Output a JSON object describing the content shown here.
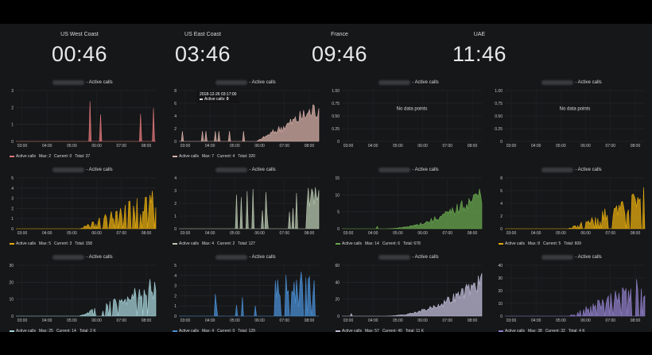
{
  "clocks": [
    {
      "city": "US West Coast",
      "time": "00:46"
    },
    {
      "city": "US East Coast",
      "time": "03:46"
    },
    {
      "city": "France",
      "time": "09:46"
    },
    {
      "city": "UAE",
      "time": "11:46"
    }
  ],
  "panel_title": "- Active calls",
  "no_data_text": "No data points",
  "tooltip": {
    "date": "2018-12-26 03:17:00",
    "label": "Active calls:",
    "value": "0"
  },
  "legend_label": "Active calls",
  "panels": [
    {
      "id": "r1c1",
      "color": "#e07878",
      "yticks": [
        "0",
        "1",
        "2",
        "3"
      ],
      "ymax": 3,
      "xticks": [
        "03:00",
        "04:00",
        "05:00",
        "06:00",
        "07:00",
        "08:00"
      ],
      "pattern": "spiky_sparse",
      "legend": {
        "max": "Max: 2",
        "current": "Current: 0",
        "total": "Total: 37"
      },
      "nodata": false
    },
    {
      "id": "r1c2",
      "color": "#d8b0a8",
      "yticks": [
        "0",
        "2",
        "4",
        "6",
        "8"
      ],
      "ymax": 8,
      "xticks": [
        "03:00",
        "04:00",
        "05:00",
        "06:00",
        "07:00",
        "08:00"
      ],
      "pattern": "ramp_late",
      "legend": {
        "max": "Max: 7",
        "current": "Current: 4",
        "total": "Total: 320"
      },
      "nodata": false,
      "tooltip": true
    },
    {
      "id": "r1c3",
      "color": "#d8d9da",
      "yticks": [
        "0",
        "0.25",
        "0.50",
        "0.75",
        "1.00"
      ],
      "ymax": 1,
      "xticks": [
        "03:00",
        "04:00",
        "05:00",
        "06:00",
        "07:00",
        "08:00"
      ],
      "pattern": "none",
      "legend": null,
      "nodata": true
    },
    {
      "id": "r1c4",
      "color": "#d8d9da",
      "yticks": [
        "0",
        "0.25",
        "0.50",
        "0.75",
        "1.00"
      ],
      "ymax": 1,
      "xticks": [
        "03:00",
        "04:00",
        "05:00",
        "06:00",
        "07:00",
        "08:00"
      ],
      "pattern": "none",
      "legend": null,
      "nodata": true
    },
    {
      "id": "r2c1",
      "color": "#e5ac0e",
      "yticks": [
        "0",
        "1",
        "2",
        "3",
        "4",
        "5"
      ],
      "ymax": 5,
      "xticks": [
        "03:00",
        "04:00",
        "05:00",
        "06:00",
        "07:00",
        "08:00"
      ],
      "pattern": "ramp_mid",
      "legend": {
        "max": "Max: 5",
        "current": "Current: 3",
        "total": "Total: 158"
      },
      "nodata": false
    },
    {
      "id": "r2c2",
      "color": "#b9c9b0",
      "yticks": [
        "0",
        "1",
        "2",
        "3",
        "4"
      ],
      "ymax": 4,
      "xticks": [
        "03:00",
        "04:00",
        "05:00",
        "06:00",
        "07:00",
        "08:00"
      ],
      "pattern": "spiky_mid",
      "legend": {
        "max": "Max: 4",
        "current": "Current: 2",
        "total": "Total: 127"
      },
      "nodata": false
    },
    {
      "id": "r2c3",
      "color": "#6aa84f",
      "yticks": [
        "0",
        "5",
        "10",
        "15"
      ],
      "ymax": 15,
      "xticks": [
        "03:00",
        "04:00",
        "05:00",
        "06:00",
        "07:00",
        "08:00"
      ],
      "pattern": "ramp_steep",
      "legend": {
        "max": "Max: 14",
        "current": "Current: 6",
        "total": "Total: 678"
      },
      "nodata": false
    },
    {
      "id": "r2c4",
      "color": "#e5ac0e",
      "yticks": [
        "0",
        "2",
        "4",
        "6",
        "8"
      ],
      "ymax": 8,
      "xticks": [
        "03:00",
        "04:00",
        "05:00",
        "06:00",
        "07:00",
        "08:00"
      ],
      "pattern": "ramp_mid",
      "legend": {
        "max": "Max: 8",
        "current": "Current: 5",
        "total": "Total: 609"
      },
      "nodata": false
    },
    {
      "id": "r3c1",
      "color": "#a5d3d8",
      "yticks": [
        "0",
        "10",
        "20",
        "30"
      ],
      "ymax": 30,
      "xticks": [
        "03:00",
        "04:00",
        "05:00",
        "06:00",
        "07:00",
        "08:00"
      ],
      "pattern": "ramp_mid",
      "legend": {
        "max": "Max: 25",
        "current": "Current: 14",
        "total": "Total: 2 K"
      },
      "nodata": false
    },
    {
      "id": "r3c2",
      "color": "#4a8fd4",
      "yticks": [
        "0",
        "1",
        "2",
        "3",
        "4",
        "5"
      ],
      "ymax": 5,
      "xticks": [
        "03:00",
        "04:00",
        "05:00",
        "06:00",
        "07:00",
        "08:00"
      ],
      "pattern": "spiky_late",
      "legend": {
        "max": "Max: 4",
        "current": "Current: 0",
        "total": "Total: 129"
      },
      "nodata": false
    },
    {
      "id": "r3c3",
      "color": "#c0bcd8",
      "yticks": [
        "0",
        "20",
        "40",
        "60"
      ],
      "ymax": 60,
      "xticks": [
        "03:00",
        "04:00",
        "05:00",
        "06:00",
        "07:00",
        "08:00"
      ],
      "pattern": "ramp_steep",
      "legend": {
        "max": "Max: 57",
        "current": "Current: 40",
        "total": "Total: 11 K"
      },
      "nodata": false
    },
    {
      "id": "r3c4",
      "color": "#8f7fc8",
      "yticks": [
        "0",
        "10",
        "20",
        "30",
        "40"
      ],
      "ymax": 40,
      "xticks": [
        "03:00",
        "04:00",
        "05:00",
        "06:00",
        "07:00",
        "08:00"
      ],
      "pattern": "ramp_mid",
      "legend": {
        "max": "Max: 38",
        "current": "Current: 32",
        "total": "Total: 4 K"
      },
      "nodata": false
    }
  ]
}
